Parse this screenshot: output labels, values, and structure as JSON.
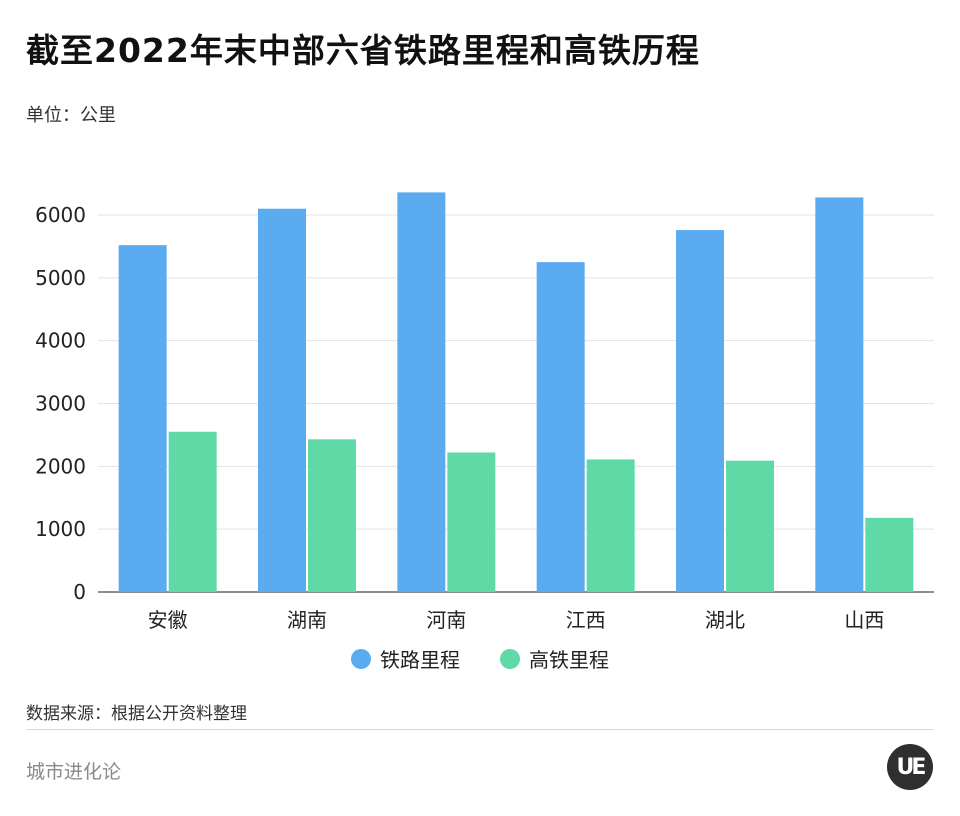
{
  "title": "截至2022年末中部六省铁路里程和高铁历程",
  "unit_label": "单位：公里",
  "source": "数据来源：根据公开资料整理",
  "brand": "城市进化论",
  "logo_text": "UE",
  "colors": {
    "railway": "#5aabf0",
    "high_speed": "#5fd9a6",
    "grid": "#e3e3e3",
    "axis": "#666666"
  },
  "chart_data": {
    "type": "bar",
    "title": "截至2022年末中部六省铁路里程和高铁历程",
    "ylabel": "单位：公里",
    "xlabel": "",
    "categories": [
      "安徽",
      "湖南",
      "河南",
      "江西",
      "湖北",
      "山西"
    ],
    "series": [
      {
        "name": "铁路里程",
        "values": [
          5520,
          6100,
          6360,
          5250,
          5760,
          6280
        ]
      },
      {
        "name": "高铁里程",
        "values": [
          2550,
          2430,
          2220,
          2110,
          2090,
          1180
        ]
      }
    ],
    "ylim": [
      0,
      6000
    ],
    "yticks": [
      0,
      1000,
      2000,
      3000,
      4000,
      5000,
      6000
    ],
    "grid": true,
    "legend_position": "bottom"
  }
}
